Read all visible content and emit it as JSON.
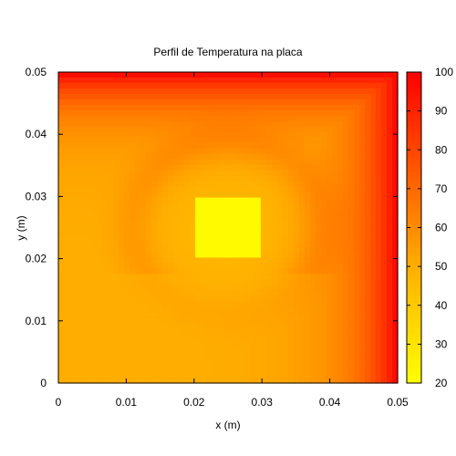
{
  "chart_data": {
    "type": "heatmap",
    "title": "Perfil de Temperatura na placa",
    "xlabel": "x (m)",
    "ylabel": "y (m)",
    "xlim": [
      0,
      0.05
    ],
    "ylim": [
      0,
      0.05
    ],
    "xticks": [
      0,
      0.01,
      0.02,
      0.03,
      0.04,
      0.05
    ],
    "yticks": [
      0,
      0.01,
      0.02,
      0.03,
      0.04,
      0.05
    ],
    "xtick_labels": [
      "0",
      "0.01",
      "0.02",
      "0.03",
      "0.04",
      "0.05"
    ],
    "ytick_labels": [
      "0",
      "0.01",
      "0.02",
      "0.03",
      "0.04",
      "0.05"
    ],
    "colorbar": {
      "range": [
        20,
        100
      ],
      "ticks": [
        20,
        30,
        40,
        50,
        60,
        70,
        80,
        90,
        100
      ],
      "tick_labels": [
        "20",
        "30",
        "40",
        "50",
        "60",
        "70",
        "80",
        "90",
        "100"
      ],
      "colors": {
        "20": "#ffff00",
        "50": "#ffae00",
        "100": "#ff0000"
      }
    },
    "boundary_conditions": {
      "top_temperature": 100,
      "right_temperature": 100,
      "left_temperature": 50,
      "bottom_temperature": 50
    },
    "hot_zone": {
      "value": 22,
      "x_range": [
        0.02,
        0.03
      ],
      "y_range": [
        0.02,
        0.03
      ]
    },
    "grid": false,
    "legend": "colorbar-right"
  }
}
